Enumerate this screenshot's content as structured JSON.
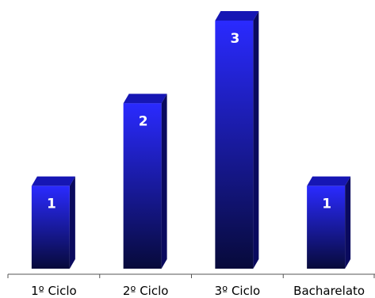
{
  "chart_data": {
    "type": "bar",
    "style": "3d",
    "categories": [
      "1º Ciclo",
      "2º Ciclo",
      "3º Ciclo",
      "Bacharelato"
    ],
    "values": [
      1,
      2,
      3,
      1
    ],
    "ylim": [
      0,
      3
    ],
    "grid": false,
    "legend": "none",
    "data_labels": [
      "1",
      "2",
      "3",
      "1"
    ],
    "colors": {
      "bar_top": "#2a2aff",
      "bar_bottom": "#070a3a",
      "bar_side": "#0a0a5e",
      "bar_cap": "#1616b4",
      "axis": "#555555"
    }
  }
}
